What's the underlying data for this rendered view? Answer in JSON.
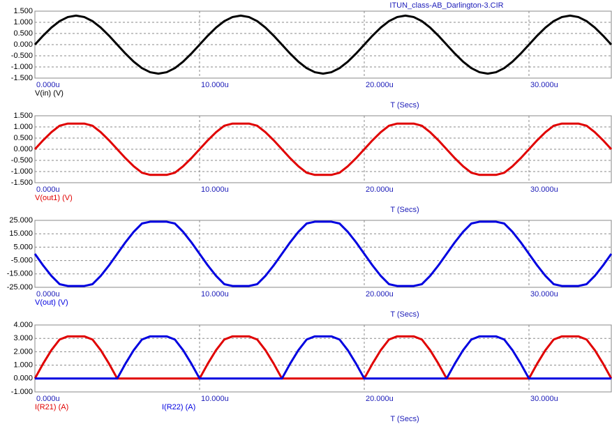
{
  "chart_data": [
    {
      "type": "line",
      "title": "ITUN_class-AB_Darlington-3.CIR",
      "x_label": "T (Secs)",
      "grid": true,
      "xlim": [
        0,
        35
      ],
      "xticks": [
        {
          "value": 0,
          "label": "0.000u"
        },
        {
          "value": 10,
          "label": "10.000u"
        },
        {
          "value": 20,
          "label": "20.000u"
        },
        {
          "value": 30,
          "label": "30.000u"
        }
      ],
      "ylim": [
        -1.5,
        1.5
      ],
      "yticks": [
        {
          "value": 1.5,
          "label": "1.500"
        },
        {
          "value": 1,
          "label": "1.000"
        },
        {
          "value": 0.5,
          "label": "0.500"
        },
        {
          "value": 0,
          "label": "0.000"
        },
        {
          "value": -0.5,
          "label": "-0.500"
        },
        {
          "value": -1,
          "label": "-1.000"
        },
        {
          "value": -1.5,
          "label": "-1.500"
        }
      ],
      "x": [
        0,
        0.5,
        1,
        1.5,
        2,
        2.5,
        3,
        3.5,
        4,
        4.5,
        5,
        5.5,
        6,
        6.5,
        7,
        7.5,
        8,
        8.5,
        9,
        9.5,
        10,
        10.5,
        11,
        11.5,
        12,
        12.5,
        13,
        13.5,
        14,
        14.5,
        15,
        15.5,
        16,
        16.5,
        17,
        17.5,
        18,
        18.5,
        19,
        19.5,
        20,
        20.5,
        21,
        21.5,
        22,
        22.5,
        23,
        23.5,
        24,
        24.5,
        25,
        25.5,
        26,
        26.5,
        27,
        27.5,
        28,
        28.5,
        29,
        29.5,
        30,
        30.5,
        31,
        31.5,
        32,
        32.5,
        33,
        33.5,
        34,
        34.5,
        35
      ],
      "series": [
        {
          "name": "V(in) (V)",
          "color": "#000000",
          "values": [
            0,
            0.402,
            0.765,
            1.052,
            1.236,
            1.3,
            1.236,
            1.052,
            0.765,
            0.402,
            0,
            -0.402,
            -0.765,
            -1.052,
            -1.236,
            -1.3,
            -1.236,
            -1.052,
            -0.765,
            -0.402,
            0,
            0.402,
            0.765,
            1.052,
            1.236,
            1.3,
            1.236,
            1.052,
            0.765,
            0.402,
            0,
            -0.402,
            -0.765,
            -1.052,
            -1.236,
            -1.3,
            -1.236,
            -1.052,
            -0.765,
            -0.402,
            0,
            0.402,
            0.765,
            1.052,
            1.236,
            1.3,
            1.236,
            1.052,
            0.765,
            0.402,
            0,
            -0.402,
            -0.765,
            -1.052,
            -1.236,
            -1.3,
            -1.236,
            -1.052,
            -0.765,
            -0.402,
            0,
            0.402,
            0.765,
            1.052,
            1.236,
            1.3,
            1.236,
            1.052,
            0.765,
            0.402,
            0
          ]
        }
      ]
    },
    {
      "type": "line",
      "x_label": "T (Secs)",
      "grid": true,
      "xlim": [
        0,
        35
      ],
      "xticks": [
        {
          "value": 0,
          "label": "0.000u"
        },
        {
          "value": 10,
          "label": "10.000u"
        },
        {
          "value": 20,
          "label": "20.000u"
        },
        {
          "value": 30,
          "label": "30.000u"
        }
      ],
      "ylim": [
        -1.5,
        1.5
      ],
      "yticks": [
        {
          "value": 1.5,
          "label": "1.500"
        },
        {
          "value": 1,
          "label": "1.000"
        },
        {
          "value": 0.5,
          "label": "0.500"
        },
        {
          "value": 0,
          "label": "0.000"
        },
        {
          "value": -0.5,
          "label": "-0.500"
        },
        {
          "value": -1,
          "label": "-1.000"
        },
        {
          "value": -1.5,
          "label": "-1.500"
        }
      ],
      "x": [
        0,
        0.5,
        1,
        1.5,
        2,
        2.5,
        3,
        3.5,
        4,
        4.5,
        5,
        5.5,
        6,
        6.5,
        7,
        7.5,
        8,
        8.5,
        9,
        9.5,
        10,
        10.5,
        11,
        11.5,
        12,
        12.5,
        13,
        13.5,
        14,
        14.5,
        15,
        15.5,
        16,
        16.5,
        17,
        17.5,
        18,
        18.5,
        19,
        19.5,
        20,
        20.5,
        21,
        21.5,
        22,
        22.5,
        23,
        23.5,
        24,
        24.5,
        25,
        25.5,
        26,
        26.5,
        27,
        27.5,
        28,
        28.5,
        29,
        29.5,
        30,
        30.5,
        31,
        31.5,
        32,
        32.5,
        33,
        33.5,
        34,
        34.5,
        35
      ],
      "series": [
        {
          "name": "V(out1) (V)",
          "color": "#e00000",
          "values": [
            0,
            0.402,
            0.765,
            1.052,
            1.15,
            1.15,
            1.15,
            1.052,
            0.765,
            0.402,
            0,
            -0.402,
            -0.765,
            -1.052,
            -1.15,
            -1.15,
            -1.15,
            -1.052,
            -0.765,
            -0.402,
            0,
            0.402,
            0.765,
            1.052,
            1.15,
            1.15,
            1.15,
            1.052,
            0.765,
            0.402,
            0,
            -0.402,
            -0.765,
            -1.052,
            -1.15,
            -1.15,
            -1.15,
            -1.052,
            -0.765,
            -0.402,
            0,
            0.402,
            0.765,
            1.052,
            1.15,
            1.15,
            1.15,
            1.052,
            0.765,
            0.402,
            0,
            -0.402,
            -0.765,
            -1.052,
            -1.15,
            -1.15,
            -1.15,
            -1.052,
            -0.765,
            -0.402,
            0,
            0.402,
            0.765,
            1.052,
            1.15,
            1.15,
            1.15,
            1.052,
            0.765,
            0.402,
            0
          ]
        }
      ]
    },
    {
      "type": "line",
      "x_label": "T (Secs)",
      "grid": true,
      "xlim": [
        0,
        35
      ],
      "xticks": [
        {
          "value": 0,
          "label": "0.000u"
        },
        {
          "value": 10,
          "label": "10.000u"
        },
        {
          "value": 20,
          "label": "20.000u"
        },
        {
          "value": 30,
          "label": "30.000u"
        }
      ],
      "ylim": [
        -25,
        25
      ],
      "yticks": [
        {
          "value": 25,
          "label": "25.000"
        },
        {
          "value": 15,
          "label": "15.000"
        },
        {
          "value": 5,
          "label": "5.000"
        },
        {
          "value": -5,
          "label": "-5.000"
        },
        {
          "value": -15,
          "label": "-15.000"
        },
        {
          "value": -25,
          "label": "-25.000"
        }
      ],
      "x": [
        0,
        0.5,
        1,
        1.5,
        2,
        2.5,
        3,
        3.5,
        4,
        4.5,
        5,
        5.5,
        6,
        6.5,
        7,
        7.5,
        8,
        8.5,
        9,
        9.5,
        10,
        10.5,
        11,
        11.5,
        12,
        12.5,
        13,
        13.5,
        14,
        14.5,
        15,
        15.5,
        16,
        16.5,
        17,
        17.5,
        18,
        18.5,
        19,
        19.5,
        20,
        20.5,
        21,
        21.5,
        22,
        22.5,
        23,
        23.5,
        24,
        24.5,
        25,
        25.5,
        26,
        26.5,
        27,
        27.5,
        28,
        28.5,
        29,
        29.5,
        30,
        30.5,
        31,
        31.5,
        32,
        32.5,
        33,
        33.5,
        34,
        34.5,
        35
      ],
      "series": [
        {
          "name": "V(out) (V)",
          "color": "#0000e0",
          "values": [
            0,
            -8.65,
            -16.46,
            -22.65,
            -24,
            -24,
            -24,
            -22.65,
            -16.46,
            -8.65,
            0,
            8.65,
            16.46,
            22.65,
            24,
            24,
            24,
            22.65,
            16.46,
            8.65,
            0,
            -8.65,
            -16.46,
            -22.65,
            -24,
            -24,
            -24,
            -22.65,
            -16.46,
            -8.65,
            0,
            8.65,
            16.46,
            22.65,
            24,
            24,
            24,
            22.65,
            16.46,
            8.65,
            0,
            -8.65,
            -16.46,
            -22.65,
            -24,
            -24,
            -24,
            -22.65,
            -16.46,
            -8.65,
            0,
            8.65,
            16.46,
            22.65,
            24,
            24,
            24,
            22.65,
            16.46,
            8.65,
            0,
            -8.65,
            -16.46,
            -22.65,
            -24,
            -24,
            -24,
            -22.65,
            -16.46,
            -8.65,
            0
          ]
        }
      ]
    },
    {
      "type": "line",
      "x_label": "T (Secs)",
      "grid": true,
      "xlim": [
        0,
        35
      ],
      "xticks": [
        {
          "value": 0,
          "label": "0.000u"
        },
        {
          "value": 10,
          "label": "10.000u"
        },
        {
          "value": 20,
          "label": "20.000u"
        },
        {
          "value": 30,
          "label": "30.000u"
        }
      ],
      "ylim": [
        -1,
        4
      ],
      "yticks": [
        {
          "value": 4,
          "label": "4.000"
        },
        {
          "value": 3,
          "label": "3.000"
        },
        {
          "value": 2,
          "label": "2.000"
        },
        {
          "value": 1,
          "label": "1.000"
        },
        {
          "value": 0,
          "label": "0.000"
        },
        {
          "value": -1,
          "label": "-1.000"
        }
      ],
      "x": [
        0,
        0.5,
        1,
        1.5,
        2,
        2.5,
        3,
        3.5,
        4,
        4.5,
        5,
        5.5,
        6,
        6.5,
        7,
        7.5,
        8,
        8.5,
        9,
        9.5,
        10,
        10.5,
        11,
        11.5,
        12,
        12.5,
        13,
        13.5,
        14,
        14.5,
        15,
        15.5,
        16,
        16.5,
        17,
        17.5,
        18,
        18.5,
        19,
        19.5,
        20,
        20.5,
        21,
        21.5,
        22,
        22.5,
        23,
        23.5,
        24,
        24.5,
        25,
        25.5,
        26,
        26.5,
        27,
        27.5,
        28,
        28.5,
        29,
        29.5,
        30,
        30.5,
        31,
        31.5,
        32,
        32.5,
        33,
        33.5,
        34,
        34.5,
        35
      ],
      "series": [
        {
          "name": "I(R21) (A)",
          "color": "#e00000",
          "values": [
            0,
            1.112,
            2.117,
            2.912,
            3.15,
            3.15,
            3.15,
            2.912,
            2.117,
            1.112,
            0,
            0,
            0,
            0,
            0,
            0,
            0,
            0,
            0,
            0,
            0,
            1.112,
            2.117,
            2.912,
            3.15,
            3.15,
            3.15,
            2.912,
            2.117,
            1.112,
            0,
            0,
            0,
            0,
            0,
            0,
            0,
            0,
            0,
            0,
            0,
            1.112,
            2.117,
            2.912,
            3.15,
            3.15,
            3.15,
            2.912,
            2.117,
            1.112,
            0,
            0,
            0,
            0,
            0,
            0,
            0,
            0,
            0,
            0,
            0,
            1.112,
            2.117,
            2.912,
            3.15,
            3.15,
            3.15,
            2.912,
            2.117,
            1.112,
            0
          ]
        },
        {
          "name": "I(R22) (A)",
          "color": "#0000e0",
          "values": [
            0,
            0,
            0,
            0,
            0,
            0,
            0,
            0,
            0,
            0,
            0,
            1.112,
            2.117,
            2.912,
            3.15,
            3.15,
            3.15,
            2.912,
            2.117,
            1.112,
            0,
            0,
            0,
            0,
            0,
            0,
            0,
            0,
            0,
            0,
            0,
            1.112,
            2.117,
            2.912,
            3.15,
            3.15,
            3.15,
            2.912,
            2.117,
            1.112,
            0,
            0,
            0,
            0,
            0,
            0,
            0,
            0,
            0,
            0,
            0,
            1.112,
            2.117,
            2.912,
            3.15,
            3.15,
            3.15,
            2.912,
            2.117,
            1.112,
            0,
            0,
            0,
            0,
            0,
            0,
            0,
            0,
            0,
            0,
            0
          ]
        }
      ]
    }
  ]
}
